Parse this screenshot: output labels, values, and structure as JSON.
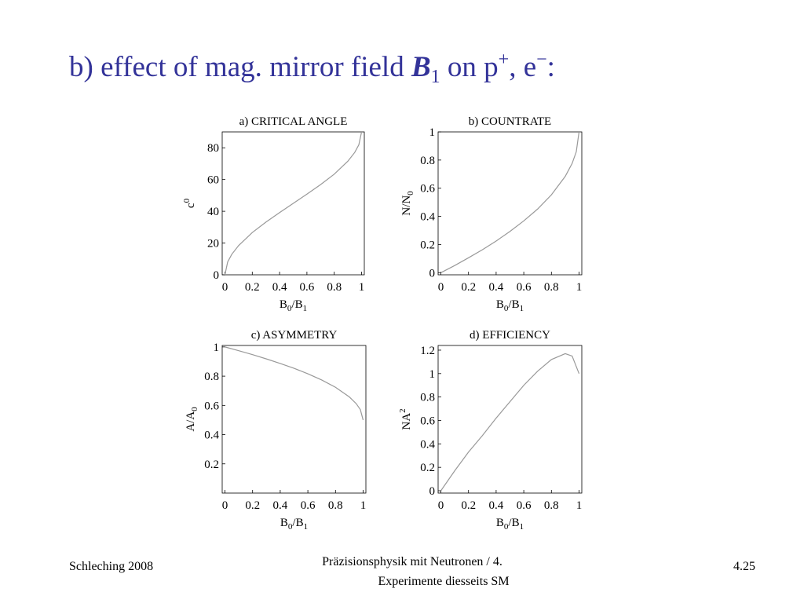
{
  "slide": {
    "title": [
      "b) effect of mag. mirror field ",
      "B",
      "1",
      " on p",
      "+",
      ", e",
      "−",
      ":"
    ],
    "footer_left": "Schleching 2008",
    "footer_center": [
      "Präzisionsphysik mit Neutronen / 4.",
      "Experimente diesseits SM"
    ],
    "footer_right": "4.25"
  },
  "chart_data": [
    {
      "type": "line",
      "title": "a) CRITICAL ANGLE",
      "xlabel": [
        "B",
        "0",
        "/B",
        "1"
      ],
      "ylabel": [
        "c",
        "0"
      ],
      "color": "#999999",
      "x": [
        0,
        0.02,
        0.05,
        0.1,
        0.2,
        0.3,
        0.4,
        0.5,
        0.6,
        0.7,
        0.8,
        0.9,
        0.95,
        0.98,
        1
      ],
      "values": [
        0,
        8.1,
        12.9,
        18.4,
        26.6,
        33.2,
        39.2,
        45,
        50.8,
        56.8,
        63.4,
        71.6,
        77.1,
        81.9,
        90
      ],
      "xlim": [
        -0.02,
        1.02
      ],
      "ylim": [
        0,
        90
      ],
      "xticks": [
        0,
        0.2,
        0.4,
        0.6,
        0.8,
        1
      ],
      "yticks": [
        0,
        20,
        40,
        60,
        80
      ]
    },
    {
      "type": "line",
      "title": "b)  COUNTRATE",
      "xlabel": [
        "B",
        "0",
        "/B",
        "1"
      ],
      "ylabel": [
        "N/N",
        "0"
      ],
      "color": "#999999",
      "x": [
        0,
        0.1,
        0.2,
        0.3,
        0.4,
        0.5,
        0.6,
        0.7,
        0.8,
        0.9,
        0.95,
        0.98,
        1
      ],
      "values": [
        0,
        0.051,
        0.106,
        0.163,
        0.225,
        0.293,
        0.368,
        0.452,
        0.553,
        0.684,
        0.776,
        0.859,
        1
      ],
      "xlim": [
        -0.02,
        1.02
      ],
      "ylim": [
        -0.015,
        1.0
      ],
      "xticks": [
        0,
        0.2,
        0.4,
        0.6,
        0.8,
        1
      ],
      "yticks": [
        0,
        0.2,
        0.4,
        0.6,
        0.8,
        1
      ]
    },
    {
      "type": "line",
      "title": "c)  ASYMMETRY",
      "xlabel": [
        "B",
        "0",
        "/B",
        "1"
      ],
      "ylabel": [
        "A/A",
        "0"
      ],
      "color": "#999999",
      "x": [
        0,
        0.1,
        0.2,
        0.3,
        0.4,
        0.5,
        0.6,
        0.7,
        0.8,
        0.9,
        0.95,
        0.98,
        1
      ],
      "values": [
        1,
        0.974,
        0.947,
        0.918,
        0.887,
        0.854,
        0.816,
        0.774,
        0.724,
        0.658,
        0.612,
        0.571,
        0.5
      ],
      "xlim": [
        -0.02,
        1.02
      ],
      "ylim": [
        0,
        1.01
      ],
      "xticks": [
        0,
        0.2,
        0.4,
        0.6,
        0.8,
        1
      ],
      "yticks": [
        0.2,
        0.4,
        0.6,
        0.8,
        1
      ]
    },
    {
      "type": "line",
      "title": "d)  EFFICIENCY",
      "xlabel": [
        "B",
        "0",
        "/B",
        "1"
      ],
      "ylabel": [
        "NA",
        "2"
      ],
      "color": "#999999",
      "x": [
        0,
        0.1,
        0.2,
        0.3,
        0.4,
        0.5,
        0.6,
        0.7,
        0.8,
        0.9,
        0.95,
        1
      ],
      "values": [
        0,
        0.17,
        0.33,
        0.47,
        0.62,
        0.76,
        0.9,
        1.02,
        1.12,
        1.17,
        1.15,
        1.0
      ],
      "xlim": [
        -0.02,
        1.02
      ],
      "ylim": [
        -0.02,
        1.24
      ],
      "xticks": [
        0,
        0.2,
        0.4,
        0.6,
        0.8,
        1
      ],
      "yticks": [
        0,
        0.2,
        0.4,
        0.6,
        0.8,
        1,
        1.2
      ]
    }
  ]
}
